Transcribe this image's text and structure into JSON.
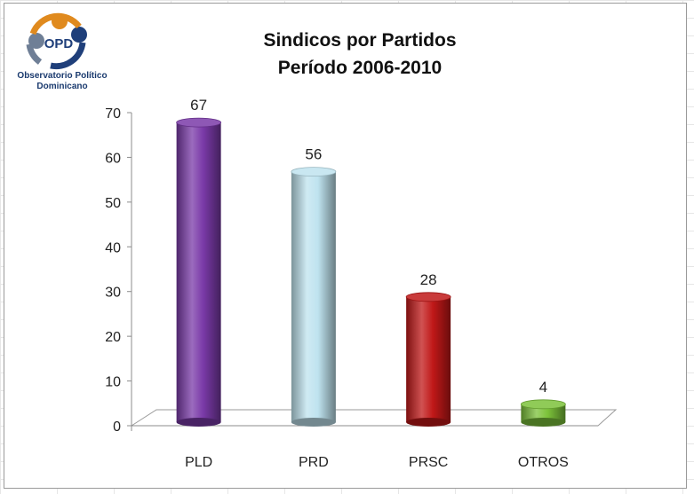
{
  "logo": {
    "mark": "OPD",
    "line1": "Observatorio Político",
    "line2": "Dominicano"
  },
  "chart_data": {
    "type": "bar",
    "title": "Sindicos por Partidos",
    "subtitle": "Período 2006-2010",
    "categories": [
      "PLD",
      "PRD",
      "PRSC",
      "OTROS"
    ],
    "values": [
      67,
      56,
      28,
      4
    ],
    "ylim": [
      0,
      70
    ],
    "yticks": [
      0,
      10,
      20,
      30,
      40,
      50,
      60,
      70
    ],
    "colors": [
      "#7a3aa8",
      "#bfe3ef",
      "#c01818",
      "#7cc23a"
    ],
    "grid": false,
    "legend": "none"
  }
}
